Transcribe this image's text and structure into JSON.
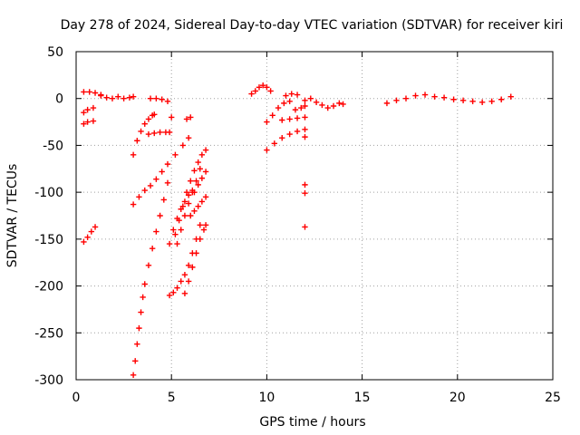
{
  "chart_data": {
    "type": "scatter",
    "title": "Day 278 of 2024, Sidereal Day-to-day VTEC variation (SDTVAR) for receiver kiri",
    "xlabel": "GPS time / hours",
    "ylabel": "SDTVAR / TECUs",
    "xlim": [
      0,
      25
    ],
    "ylim": [
      -300,
      50
    ],
    "xticks": [
      0,
      5,
      10,
      15,
      20,
      25
    ],
    "yticks": [
      50,
      0,
      -50,
      -100,
      -150,
      -200,
      -250,
      -300
    ],
    "xtick_labels": [
      "0",
      "5",
      "10",
      "15",
      "20",
      "25"
    ],
    "ytick_labels": [
      "50",
      "0",
      "-50",
      "-100",
      "-150",
      "-200",
      "-250",
      "-300"
    ],
    "grid": true,
    "marker": "+",
    "color": "#ff0000",
    "series": [
      {
        "name": "s1",
        "x": [
          0.4,
          0.7,
          1.0,
          1.3
        ],
        "y": [
          7,
          7,
          6,
          4
        ]
      },
      {
        "name": "s2",
        "x": [
          1.3,
          1.6,
          1.9,
          2.2,
          2.5,
          2.8,
          3.0
        ],
        "y": [
          3,
          1,
          0,
          2,
          0,
          1,
          2
        ]
      },
      {
        "name": "s3",
        "x": [
          0.4,
          0.6,
          0.9
        ],
        "y": [
          -15,
          -12,
          -10
        ]
      },
      {
        "name": "s4",
        "x": [
          0.4,
          0.6,
          0.9
        ],
        "y": [
          -27,
          -25,
          -24
        ]
      },
      {
        "name": "s5",
        "x": [
          0.4,
          0.6,
          0.8,
          1.0
        ],
        "y": [
          -153,
          -148,
          -142,
          -137
        ]
      },
      {
        "name": "s6",
        "x": [
          3.0,
          3.2,
          3.4,
          3.6,
          3.8,
          4.0,
          4.1
        ],
        "y": [
          -60,
          -45,
          -35,
          -27,
          -22,
          -18,
          -17
        ]
      },
      {
        "name": "s7",
        "x": [
          3.0,
          3.3,
          3.6,
          3.9,
          4.2,
          4.5,
          4.8,
          5.2,
          5.6,
          5.9
        ],
        "y": [
          -113,
          -105,
          -98,
          -93,
          -86,
          -78,
          -70,
          -60,
          -50,
          -42
        ]
      },
      {
        "name": "s8",
        "x": [
          3.8,
          4.1,
          4.4,
          4.7,
          4.9
        ],
        "y": [
          -38,
          -37,
          -36,
          -36,
          -36
        ]
      },
      {
        "name": "s9",
        "x": [
          3.9,
          4.2,
          4.5,
          4.8
        ],
        "y": [
          0,
          0,
          -1,
          -3
        ]
      },
      {
        "name": "s10",
        "x": [
          3.0,
          3.1,
          3.2,
          3.3,
          3.4,
          3.5,
          3.6,
          3.8,
          4.0,
          4.2,
          4.4,
          4.6,
          4.8
        ],
        "y": [
          -295,
          -280,
          -262,
          -245,
          -228,
          -212,
          -198,
          -178,
          -160,
          -142,
          -125,
          -108,
          -90
        ]
      },
      {
        "name": "s11",
        "x": [
          4.9,
          5.1,
          5.3,
          5.5,
          5.7,
          5.9,
          6.1,
          6.3,
          6.5
        ],
        "y": [
          -210,
          -207,
          -202,
          -195,
          -188,
          -178,
          -165,
          -150,
          -135
        ]
      },
      {
        "name": "s12",
        "x": [
          5.7,
          5.9,
          6.1,
          6.3,
          6.5,
          6.7,
          6.8
        ],
        "y": [
          -208,
          -195,
          -180,
          -165,
          -150,
          -140,
          -135
        ]
      },
      {
        "name": "s13",
        "x": [
          4.9,
          5.1,
          5.3,
          5.5,
          5.7,
          5.9,
          6.1
        ],
        "y": [
          -155,
          -140,
          -128,
          -118,
          -110,
          -103,
          -98
        ]
      },
      {
        "name": "s14",
        "x": [
          5.3,
          5.5,
          5.7,
          5.9,
          6.1,
          6.3,
          6.5
        ],
        "y": [
          -155,
          -140,
          -125,
          -112,
          -100,
          -88,
          -75
        ]
      },
      {
        "name": "s15",
        "x": [
          5.2,
          5.4,
          5.6,
          5.8,
          6.0,
          6.2,
          6.4,
          6.6,
          6.8
        ],
        "y": [
          -145,
          -130,
          -115,
          -100,
          -88,
          -77,
          -68,
          -60,
          -55
        ]
      },
      {
        "name": "s16",
        "x": [
          6.0,
          6.2,
          6.4,
          6.6,
          6.8
        ],
        "y": [
          -125,
          -120,
          -115,
          -110,
          -105
        ]
      },
      {
        "name": "s17",
        "x": [
          6.2,
          6.4,
          6.6,
          6.8
        ],
        "y": [
          -100,
          -92,
          -85,
          -78
        ]
      },
      {
        "name": "s18",
        "x": [
          5.0,
          5.8,
          6.0
        ],
        "y": [
          -20,
          -22,
          -20
        ]
      },
      {
        "name": "s19",
        "x": [
          9.2,
          9.4,
          9.6,
          9.8,
          10.0,
          10.2
        ],
        "y": [
          5,
          8,
          12,
          14,
          12,
          8
        ]
      },
      {
        "name": "s20",
        "x": [
          10.0,
          10.3,
          10.6,
          10.9,
          11.2
        ],
        "y": [
          -25,
          -18,
          -10,
          -5,
          -3
        ]
      },
      {
        "name": "s21",
        "x": [
          10.0,
          10.4,
          10.8,
          11.2,
          11.6,
          12.0
        ],
        "y": [
          -55,
          -48,
          -42,
          -38,
          -35,
          -33
        ]
      },
      {
        "name": "s22",
        "x": [
          10.8,
          11.2,
          11.6,
          12.0
        ],
        "y": [
          -23,
          -22,
          -21,
          -20
        ]
      },
      {
        "name": "s23",
        "x": [
          11.5,
          11.8,
          12.0
        ],
        "y": [
          -12,
          -10,
          -8
        ]
      },
      {
        "name": "s24",
        "x": [
          11.0,
          11.3,
          11.6
        ],
        "y": [
          3,
          5,
          4
        ]
      },
      {
        "name": "s25",
        "x": [
          12.0,
          12.3,
          12.6,
          12.9,
          13.2,
          13.5,
          13.8,
          14.0
        ],
        "y": [
          -2,
          0,
          -4,
          -7,
          -10,
          -8,
          -5,
          -6
        ]
      },
      {
        "name": "s26",
        "x": [
          12.0,
          12.0,
          12.0,
          12.0
        ],
        "y": [
          -41,
          -92,
          -101,
          -137
        ]
      },
      {
        "name": "s27",
        "x": [
          16.3,
          16.8,
          17.3,
          17.8,
          18.3,
          18.8,
          19.3,
          19.8,
          20.3,
          20.8,
          21.3,
          21.8,
          22.3,
          22.8
        ],
        "y": [
          -5,
          -2,
          0,
          3,
          4,
          2,
          1,
          -1,
          -2,
          -3,
          -4,
          -3,
          -1,
          2
        ]
      }
    ]
  }
}
